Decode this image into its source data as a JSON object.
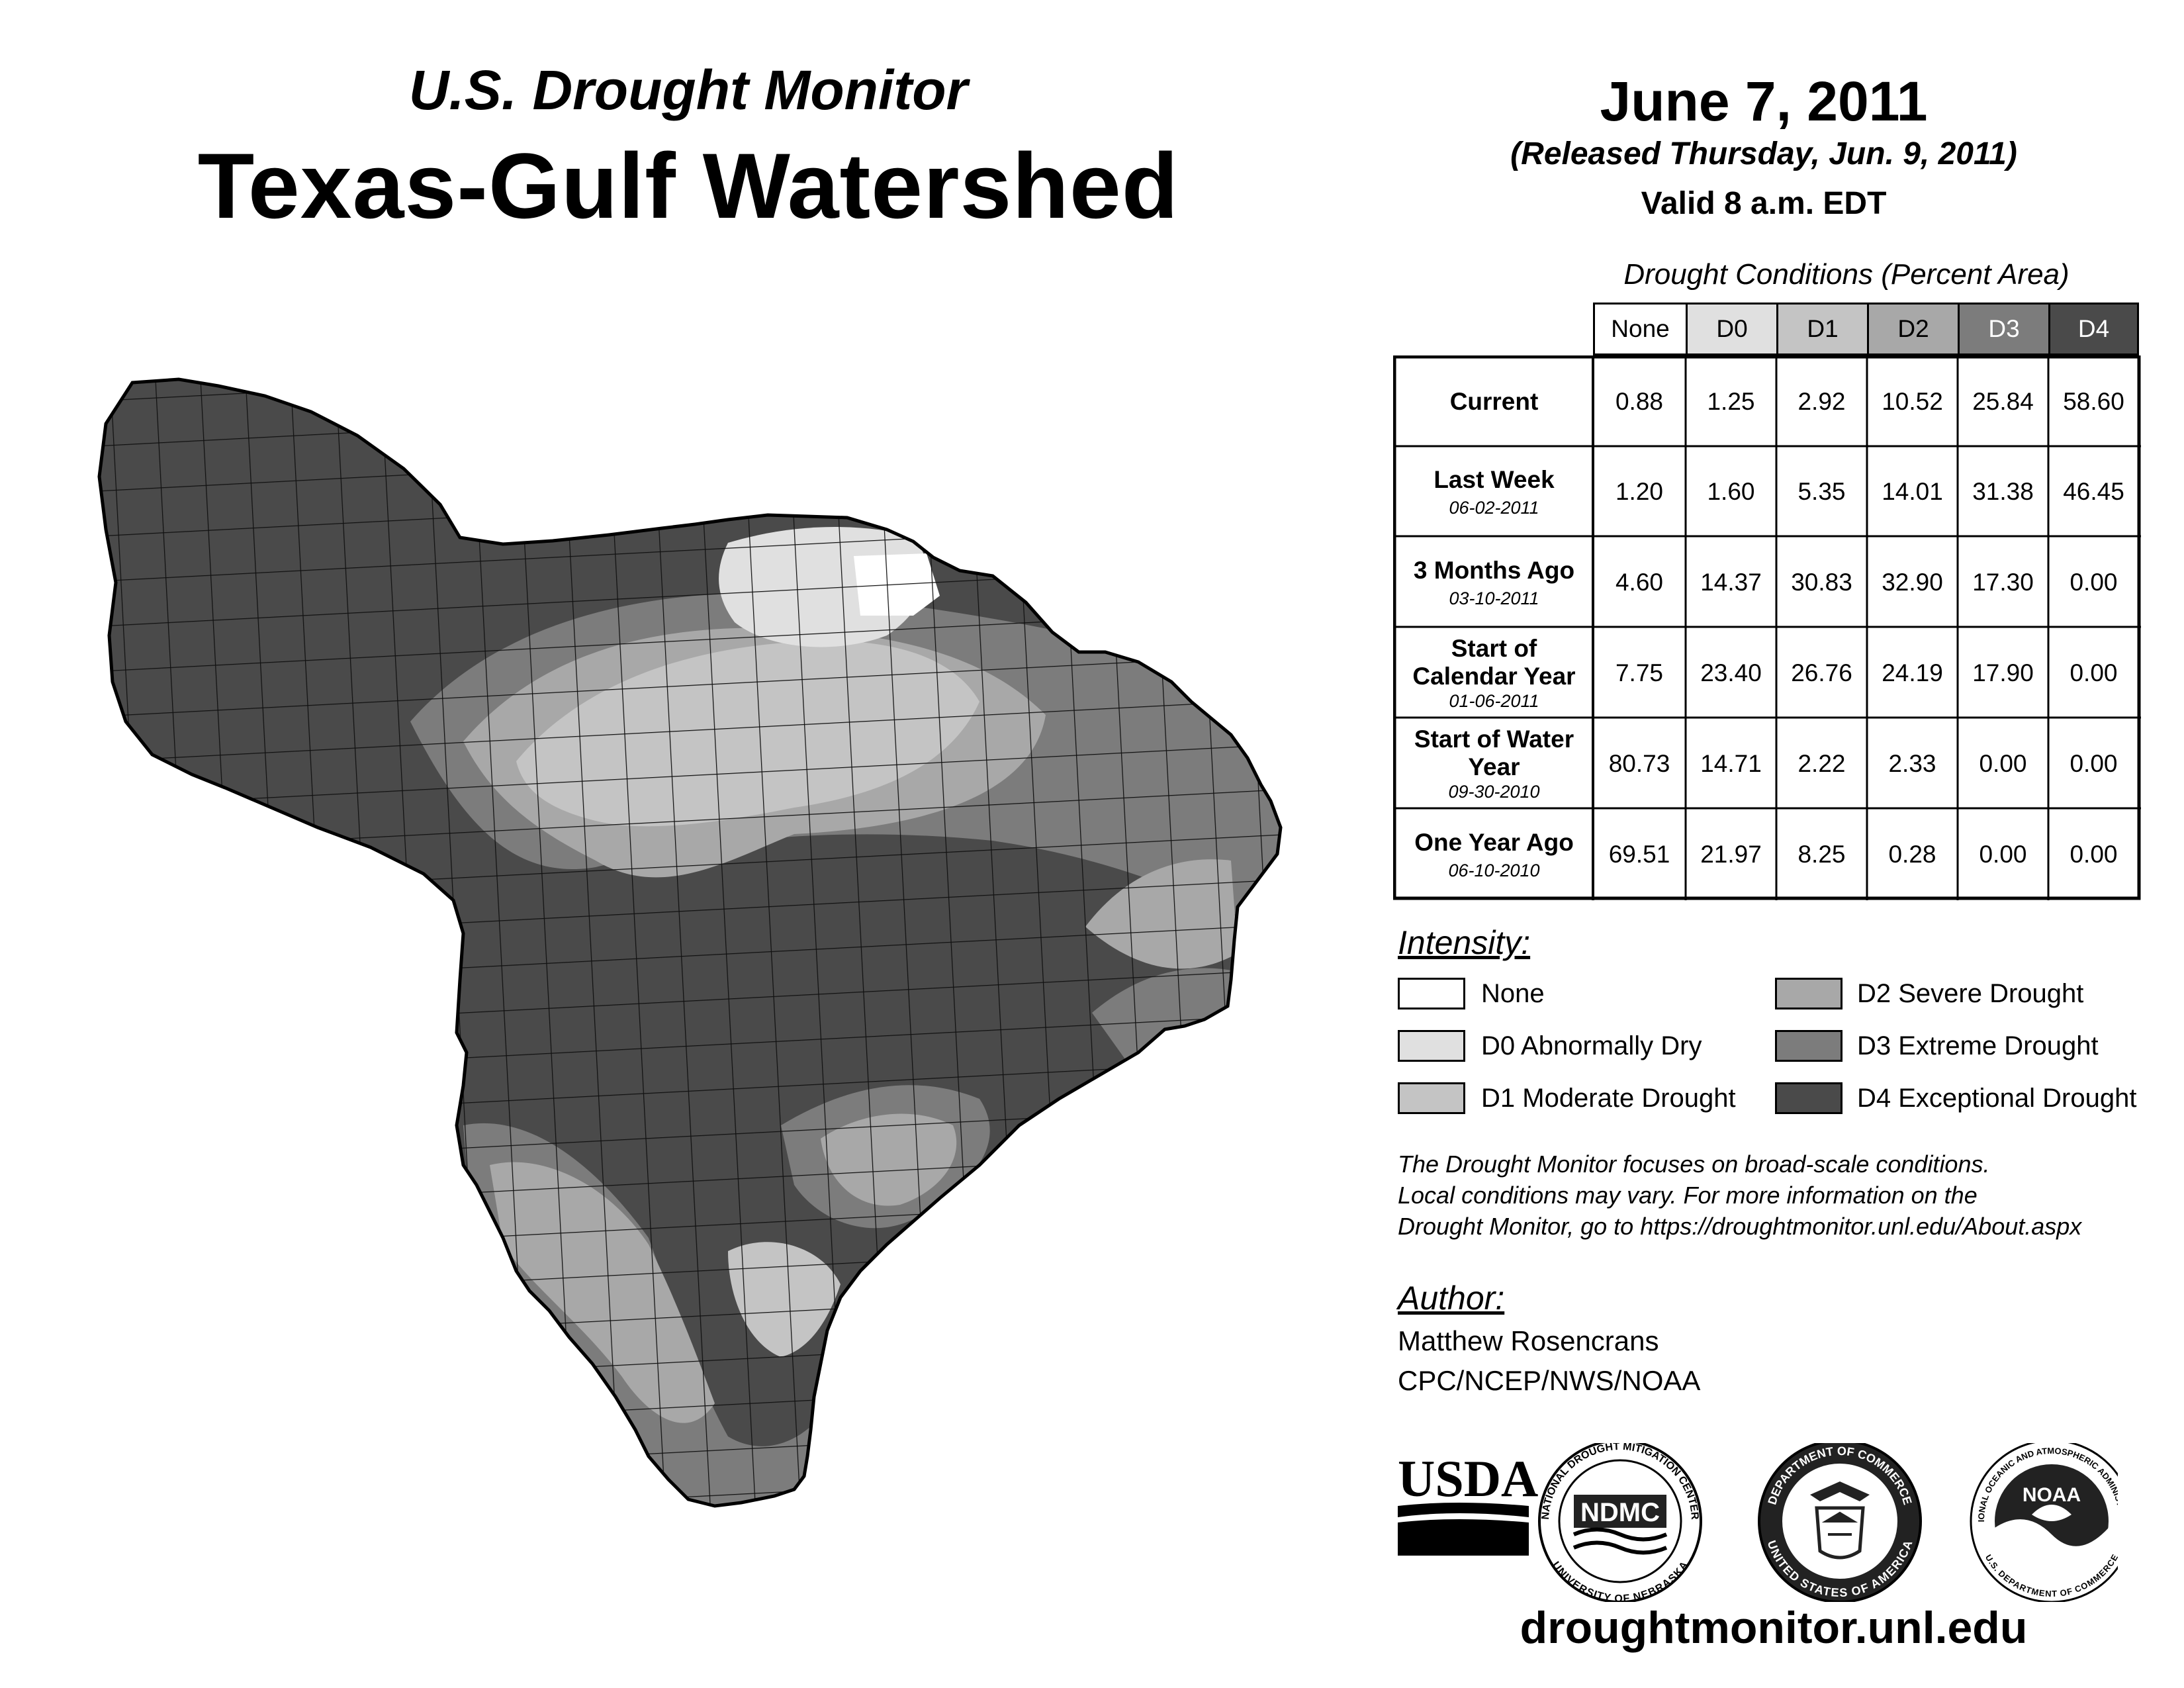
{
  "header": {
    "subtitle": "U.S. Drought Monitor",
    "title": "Texas-Gulf Watershed",
    "date": "June 7, 2011",
    "released": "(Released Thursday, Jun. 9, 2011)",
    "valid": "Valid 8 a.m. EDT"
  },
  "table": {
    "caption": "Drought Conditions (Percent Area)",
    "columns": [
      "None",
      "D0",
      "D1",
      "D2",
      "D3",
      "D4"
    ],
    "column_colors": [
      "#ffffff",
      "#e0e0e0",
      "#c4c4c4",
      "#a8a8a8",
      "#7c7c7c",
      "#4a4a4a"
    ],
    "rows": [
      {
        "label": "Current",
        "date": "",
        "values": [
          "0.88",
          "1.25",
          "2.92",
          "10.52",
          "25.84",
          "58.60"
        ]
      },
      {
        "label": "Last Week",
        "date": "06-02-2011",
        "values": [
          "1.20",
          "1.60",
          "5.35",
          "14.01",
          "31.38",
          "46.45"
        ]
      },
      {
        "label": "3 Months Ago",
        "date": "03-10-2011",
        "values": [
          "4.60",
          "14.37",
          "30.83",
          "32.90",
          "17.30",
          "0.00"
        ]
      },
      {
        "label": "Start of Calendar Year",
        "date": "01-06-2011",
        "values": [
          "7.75",
          "23.40",
          "26.76",
          "24.19",
          "17.90",
          "0.00"
        ]
      },
      {
        "label": "Start of Water Year",
        "date": "09-30-2010",
        "values": [
          "80.73",
          "14.71",
          "2.22",
          "2.33",
          "0.00",
          "0.00"
        ]
      },
      {
        "label": "One Year Ago",
        "date": "06-10-2010",
        "values": [
          "69.51",
          "21.97",
          "8.25",
          "0.28",
          "0.00",
          "0.00"
        ]
      }
    ]
  },
  "legend": {
    "title": "Intensity:",
    "items": [
      {
        "label": "None",
        "color": "#ffffff"
      },
      {
        "label": "D0 Abnormally Dry",
        "color": "#e0e0e0"
      },
      {
        "label": "D1 Moderate Drought",
        "color": "#c4c4c4"
      },
      {
        "label": "D2 Severe Drought",
        "color": "#a8a8a8"
      },
      {
        "label": "D3 Extreme Drought",
        "color": "#7c7c7c"
      },
      {
        "label": "D4 Exceptional Drought",
        "color": "#4a4a4a"
      }
    ]
  },
  "note": {
    "line1": "The Drought Monitor focuses on broad-scale conditions.",
    "line2": "Local conditions may vary. For more information on the",
    "line3": "Drought Monitor, go to https://droughtmonitor.unl.edu/About.aspx"
  },
  "author": {
    "title": "Author:",
    "name": "Matthew Rosencrans",
    "org": "CPC/NCEP/NWS/NOAA"
  },
  "logos": {
    "usda": "USDA",
    "ndmc": "NDMC",
    "ndmc_ring_top": "NATIONAL DROUGHT MITIGATION CENTER",
    "ndmc_ring_bottom": "UNIVERSITY OF NEBRASKA",
    "doc_ring_top": "DEPARTMENT OF COMMERCE",
    "doc_ring_bottom": "UNITED STATES OF AMERICA",
    "noaa": "NOAA",
    "noaa_ring_top": "NATIONAL OCEANIC AND ATMOSPHERIC ADMINISTRATION",
    "noaa_ring_bottom": "U.S. DEPARTMENT OF COMMERCE"
  },
  "footer": {
    "url": "droughtmonitor.unl.edu"
  }
}
